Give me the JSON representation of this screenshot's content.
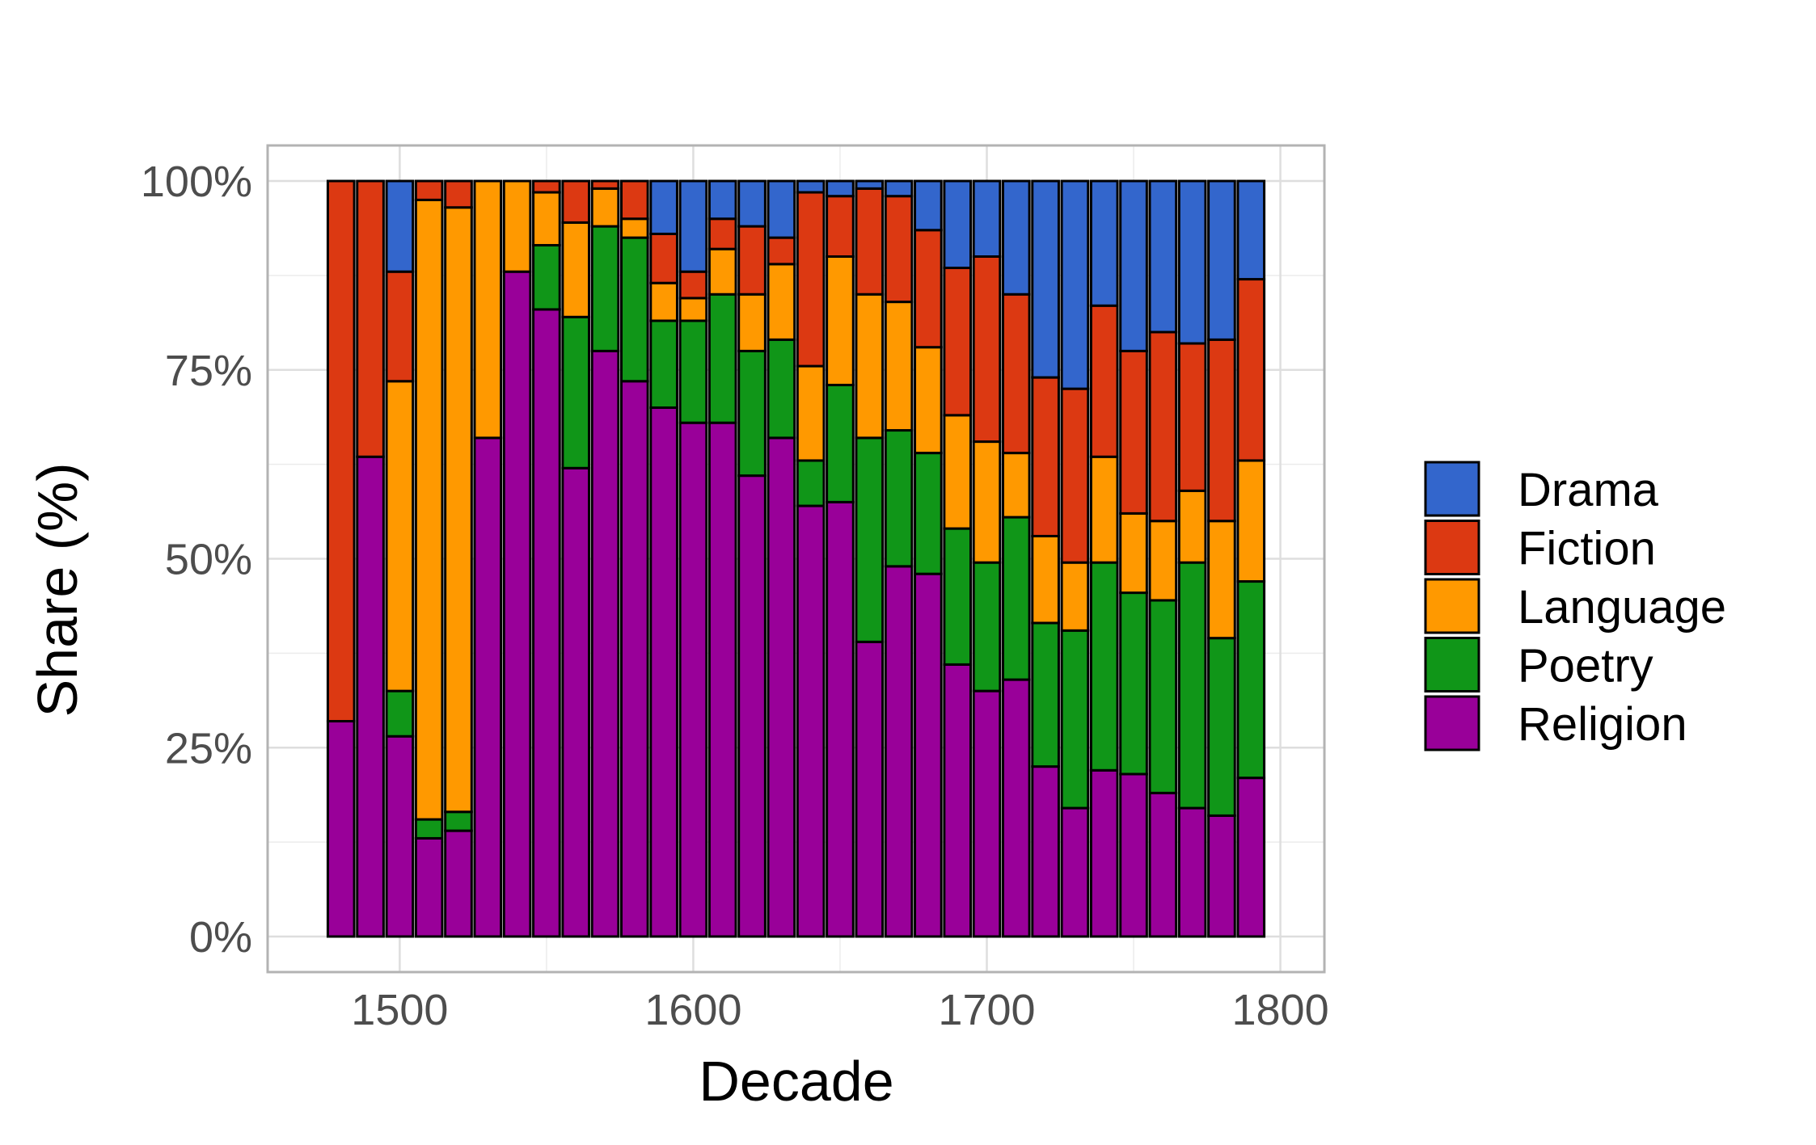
{
  "chart_data": {
    "type": "bar",
    "stacked": true,
    "percent": true,
    "xlabel": "Decade",
    "ylabel": "Share (%)",
    "x_ticks": [
      1500,
      1600,
      1700,
      1800
    ],
    "y_ticks": [
      "0%",
      "25%",
      "50%",
      "75%",
      "100%"
    ],
    "xlim": [
      1455,
      1815
    ],
    "ylim": [
      0,
      100
    ],
    "grid": true,
    "legend_position": "right",
    "categories": [
      1480,
      1490,
      1500,
      1510,
      1520,
      1530,
      1540,
      1550,
      1560,
      1570,
      1580,
      1590,
      1600,
      1610,
      1620,
      1630,
      1640,
      1650,
      1660,
      1670,
      1680,
      1690,
      1700,
      1710,
      1720,
      1730,
      1740,
      1750,
      1760,
      1770,
      1780,
      1790
    ],
    "series": [
      {
        "name": "Religion",
        "color": "#990099",
        "values": [
          28.5,
          63.5,
          26.5,
          13.0,
          14.0,
          66.0,
          88.0,
          83.0,
          62.0,
          77.5,
          73.5,
          70.0,
          68.0,
          68.0,
          61.0,
          66.0,
          57.0,
          57.5,
          39.0,
          49.0,
          48.0,
          36.0,
          32.5,
          34.0,
          22.5,
          17.0,
          22.0,
          21.5,
          19.0,
          17.0,
          16.0,
          21.0
        ]
      },
      {
        "name": "Poetry",
        "color": "#109618",
        "values": [
          0,
          0,
          6.0,
          2.5,
          2.5,
          0,
          0,
          8.5,
          20.0,
          16.5,
          19.0,
          11.5,
          13.5,
          17.0,
          16.5,
          13.0,
          6.0,
          15.5,
          27.0,
          18.0,
          16.0,
          18.0,
          17.0,
          21.5,
          19.0,
          23.5,
          27.5,
          24.0,
          25.5,
          32.5,
          23.5,
          26.0
        ]
      },
      {
        "name": "Language",
        "color": "#FF9900",
        "values": [
          0,
          0,
          41.0,
          82.0,
          80.0,
          34.0,
          12.0,
          7.0,
          12.5,
          5.0,
          2.5,
          5.0,
          3.0,
          6.0,
          7.5,
          10.0,
          12.5,
          17.0,
          19.0,
          17.0,
          14.0,
          15.0,
          16.0,
          8.5,
          11.5,
          9.0,
          14.0,
          10.5,
          10.5,
          9.5,
          15.5,
          16.0
        ]
      },
      {
        "name": "Fiction",
        "color": "#DC3912",
        "values": [
          71.5,
          36.5,
          14.5,
          2.5,
          3.5,
          0,
          0,
          1.5,
          5.5,
          1.0,
          5.0,
          6.5,
          3.5,
          4.0,
          9.0,
          3.5,
          23.0,
          8.0,
          14.0,
          14.0,
          15.5,
          19.5,
          24.5,
          21.0,
          21.0,
          23.0,
          20.0,
          21.5,
          25.0,
          19.5,
          24.0,
          24.0
        ]
      },
      {
        "name": "Drama",
        "color": "#3366CC",
        "values": [
          0,
          0,
          12.0,
          0,
          0,
          0,
          0,
          0,
          0,
          0,
          0,
          7.0,
          12.0,
          5.0,
          6.0,
          7.5,
          1.5,
          2.0,
          1.0,
          2.0,
          6.5,
          11.5,
          10.0,
          15.0,
          26.0,
          27.5,
          16.5,
          22.5,
          20.0,
          21.5,
          21.0,
          13.0
        ]
      }
    ],
    "legend_order": [
      "Drama",
      "Fiction",
      "Language",
      "Poetry",
      "Religion"
    ]
  }
}
